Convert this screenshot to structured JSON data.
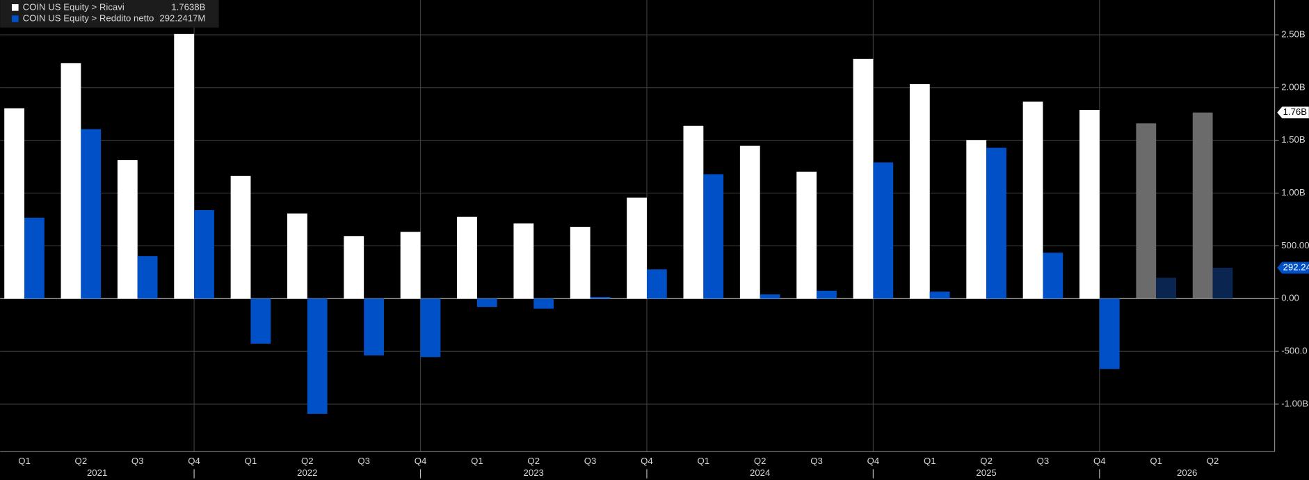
{
  "chart_data": {
    "type": "bar",
    "categories": [
      "Q1",
      "Q2",
      "Q3",
      "Q4",
      "Q1",
      "Q2",
      "Q3",
      "Q4",
      "Q1",
      "Q2",
      "Q3",
      "Q4",
      "Q1",
      "Q2",
      "Q3",
      "Q4",
      "Q1",
      "Q2",
      "Q3",
      "Q4",
      "Q1",
      "Q2"
    ],
    "years": [
      "2021",
      "2022",
      "2023",
      "2024",
      "2025",
      "2026"
    ],
    "series": [
      {
        "name": "COIN US Equity > Ricavi",
        "legend_value": "1.7638B",
        "last_label": "1.76B",
        "color": "#ffffff",
        "colors": [
          "#ffffff",
          "#ffffff",
          "#ffffff",
          "#ffffff",
          "#ffffff",
          "#ffffff",
          "#ffffff",
          "#ffffff",
          "#ffffff",
          "#ffffff",
          "#ffffff",
          "#ffffff",
          "#ffffff",
          "#ffffff",
          "#ffffff",
          "#ffffff",
          "#ffffff",
          "#ffffff",
          "#ffffff",
          "#ffffff",
          "#6b6b6b",
          "#6b6b6b"
        ],
        "values": [
          1804,
          2231,
          1313,
          2508,
          1163,
          807,
          593,
          633,
          775,
          712,
          680,
          957,
          1638,
          1448,
          1203,
          2271,
          2033,
          1503,
          1867,
          1788,
          1661,
          1763.8
        ]
      },
      {
        "name": "COIN US Equity > Reddito netto",
        "legend_value": "292.2417M",
        "last_label": "292.24",
        "color": "#0050c8",
        "colors": [
          "#0050c8",
          "#0050c8",
          "#0050c8",
          "#0050c8",
          "#0050c8",
          "#0050c8",
          "#0050c8",
          "#0050c8",
          "#0050c8",
          "#0050c8",
          "#0050c8",
          "#0050c8",
          "#0050c8",
          "#0050c8",
          "#0050c8",
          "#0050c8",
          "#0050c8",
          "#0050c8",
          "#0050c8",
          "#0050c8",
          "#0a2550",
          "#0a2550"
        ],
        "values": [
          767,
          1606,
          403,
          839,
          -427,
          -1092,
          -538,
          -554,
          -79,
          -95,
          15,
          277,
          1179,
          40,
          75,
          1291,
          66,
          1429,
          435,
          -667,
          198,
          292.24
        ]
      }
    ],
    "ylim": [
      -1450,
      2830
    ],
    "yticks": [
      {
        "value": -1000,
        "label": "-1.00B"
      },
      {
        "value": -500,
        "label": "-500.0"
      },
      {
        "value": 0,
        "label": "0.00"
      },
      {
        "value": 500,
        "label": "500.00"
      },
      {
        "value": 1000,
        "label": "1.00B"
      },
      {
        "value": 1500,
        "label": "1.50B"
      },
      {
        "value": 2000,
        "label": "2.00B"
      },
      {
        "value": 2500,
        "label": "2.50B"
      }
    ],
    "grid": true
  }
}
